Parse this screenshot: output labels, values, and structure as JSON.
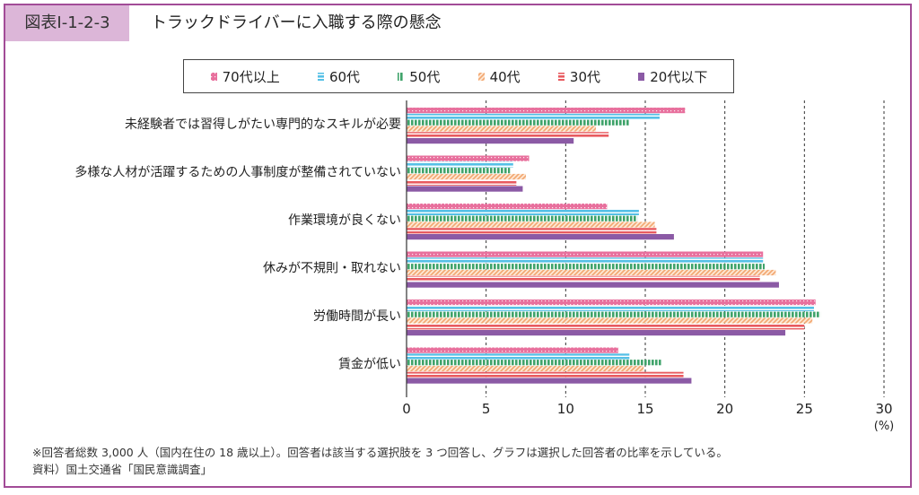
{
  "header": {
    "figure_label": "図表Ⅰ-1-2-3",
    "title": "トラックドライバーに入職する際の懸念"
  },
  "chart_data": {
    "type": "bar",
    "orientation": "horizontal",
    "categories": [
      "未経験者では習得しがたい専門的なスキルが必要",
      "多様な人材が活躍するための人事制度が整備されていない",
      "作業環境が良くない",
      "休みが不規則・取れない",
      "労働時間が長い",
      "賃金が低い"
    ],
    "series": [
      {
        "name": "70代以上",
        "color": "#e8709d",
        "pattern": "dots",
        "values": [
          17.5,
          7.7,
          12.6,
          22.4,
          25.7,
          13.3
        ]
      },
      {
        "name": "60代",
        "color": "#55c0e6",
        "pattern": "hlines",
        "values": [
          15.9,
          6.7,
          14.6,
          22.4,
          25.6,
          14.0
        ]
      },
      {
        "name": "50代",
        "color": "#3fa36a",
        "pattern": "vlines",
        "values": [
          14.0,
          6.5,
          14.5,
          22.5,
          26.0,
          16.0
        ]
      },
      {
        "name": "40代",
        "color": "#f2a66f",
        "pattern": "diag",
        "values": [
          11.9,
          7.5,
          15.6,
          23.2,
          25.5,
          14.9
        ]
      },
      {
        "name": "30代",
        "color": "#e85a5f",
        "pattern": "hlines",
        "values": [
          12.7,
          6.9,
          15.7,
          22.2,
          25.0,
          17.4
        ]
      },
      {
        "name": "20代以下",
        "color": "#8b5aa5",
        "pattern": "solid",
        "values": [
          10.5,
          7.3,
          16.8,
          23.4,
          23.8,
          17.9
        ]
      }
    ],
    "xlim": [
      0,
      30
    ],
    "xticks": [
      0,
      5,
      10,
      15,
      20,
      25,
      30
    ],
    "xunit": "(%)",
    "grid": "dashed vertical",
    "legend_position": "top"
  },
  "footnotes": {
    "note": "※回答者総数 3,000 人（国内在住の 18 歳以上）。回答者は該当する選択肢を 3 つ回答し、グラフは選択した回答者の比率を示している。",
    "source": "資料）国土交通省「国民意識調査」"
  }
}
